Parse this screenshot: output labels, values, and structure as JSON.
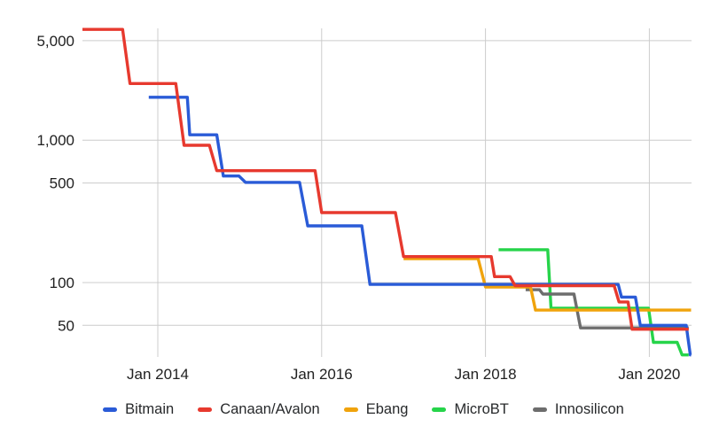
{
  "chart": {
    "background": "#ffffff",
    "grid_color": "#cccccc",
    "axis_label_color": "#212121",
    "legend_text_color": "#27292b"
  },
  "chart_data": {
    "type": "line",
    "title": "",
    "subtitle": "",
    "xlabel": "",
    "ylabel": "",
    "grid": true,
    "legend_position": "bottom",
    "x_axis": {
      "scale": "time-linear",
      "range": [
        2013.08,
        2020.515
      ],
      "ticks": [
        {
          "label": "Jan 2014",
          "year": 2014
        },
        {
          "label": "Jan 2016",
          "year": 2016
        },
        {
          "label": "Jan 2018",
          "year": 2018
        },
        {
          "label": "Jan 2020",
          "year": 2020
        }
      ]
    },
    "y_axis": {
      "scale": "log",
      "range": [
        30,
        6100
      ],
      "ticks": [
        {
          "label": "5,000",
          "value": 5000
        },
        {
          "label": "1,000",
          "value": 1000
        },
        {
          "label": "500",
          "value": 500
        },
        {
          "label": "100",
          "value": 100
        },
        {
          "label": "50",
          "value": 50
        }
      ]
    },
    "series": [
      {
        "name": "Bitmain",
        "color": "#2a5bd7",
        "points": [
          [
            2013.89,
            2000
          ],
          [
            2014.36,
            2000
          ],
          [
            2014.39,
            1090
          ],
          [
            2014.72,
            1090
          ],
          [
            2014.8,
            560
          ],
          [
            2014.99,
            560
          ],
          [
            2015.07,
            505
          ],
          [
            2015.73,
            505
          ],
          [
            2015.83,
            250
          ],
          [
            2016.49,
            250
          ],
          [
            2016.59,
            97
          ],
          [
            2019.62,
            97
          ],
          [
            2019.66,
            79
          ],
          [
            2019.83,
            79
          ],
          [
            2019.89,
            50
          ],
          [
            2020.45,
            50
          ],
          [
            2020.5,
            31
          ],
          [
            2020.51,
            31
          ]
        ]
      },
      {
        "name": "Canaan/Avalon",
        "color": "#e7392e",
        "points": [
          [
            2013.08,
            6000
          ],
          [
            2013.57,
            6000
          ],
          [
            2013.66,
            2500
          ],
          [
            2014.22,
            2500
          ],
          [
            2014.32,
            920
          ],
          [
            2014.63,
            920
          ],
          [
            2014.72,
            610
          ],
          [
            2015.92,
            610
          ],
          [
            2016.0,
            310
          ],
          [
            2016.9,
            310
          ],
          [
            2017.0,
            152
          ],
          [
            2018.07,
            152
          ],
          [
            2018.11,
            110
          ],
          [
            2018.3,
            110
          ],
          [
            2018.36,
            95
          ],
          [
            2019.57,
            95
          ],
          [
            2019.63,
            73
          ],
          [
            2019.74,
            73
          ],
          [
            2019.79,
            47
          ],
          [
            2020.48,
            47
          ]
        ]
      },
      {
        "name": "Ebang",
        "color": "#f0a30c",
        "points": [
          [
            2017.0,
            147
          ],
          [
            2017.91,
            147
          ],
          [
            2018.0,
            93
          ],
          [
            2018.55,
            93
          ],
          [
            2018.61,
            64
          ],
          [
            2020.51,
            64
          ]
        ]
      },
      {
        "name": "MicroBT",
        "color": "#26d44a",
        "points": [
          [
            2018.16,
            170
          ],
          [
            2018.76,
            170
          ],
          [
            2018.8,
            66
          ],
          [
            2019.99,
            66
          ],
          [
            2020.05,
            38
          ],
          [
            2020.34,
            38
          ],
          [
            2020.4,
            31
          ],
          [
            2020.48,
            31
          ]
        ]
      },
      {
        "name": "Innosilicon",
        "color": "#6d6d6d",
        "points": [
          [
            2018.49,
            89
          ],
          [
            2018.66,
            89
          ],
          [
            2018.7,
            83
          ],
          [
            2019.08,
            83
          ],
          [
            2019.16,
            48
          ],
          [
            2020.48,
            48
          ]
        ]
      }
    ],
    "draw_order": [
      "MicroBT",
      "Innosilicon",
      "Ebang",
      "Bitmain",
      "Canaan/Avalon"
    ]
  }
}
